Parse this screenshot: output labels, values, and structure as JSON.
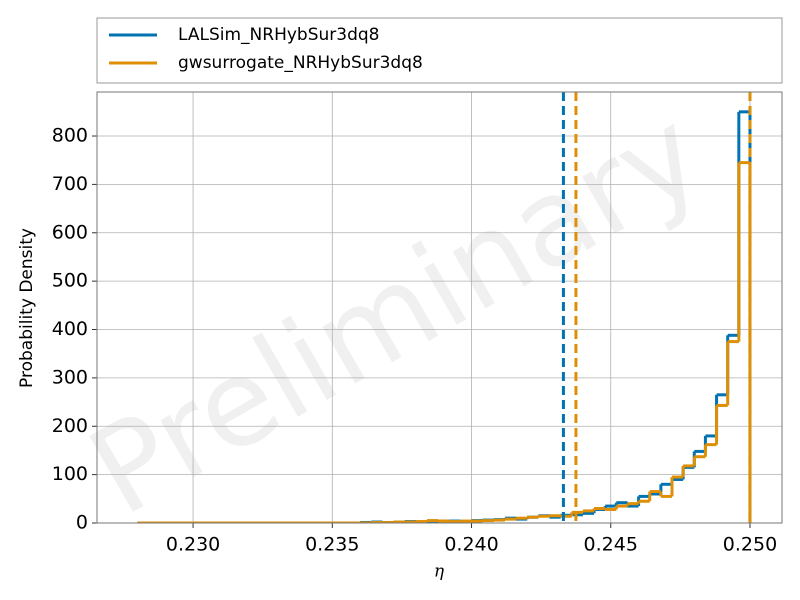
{
  "chart_data": {
    "type": "step-histogram",
    "xlabel": "η",
    "ylabel": "Probability Density",
    "watermark": "Preliminary",
    "bins": [
      0.228,
      0.2284,
      0.2288,
      0.2292,
      0.2296,
      0.23,
      0.2304,
      0.2308,
      0.2312,
      0.2316,
      0.232,
      0.2324,
      0.2328,
      0.2332,
      0.2336,
      0.234,
      0.2344,
      0.2348,
      0.2352,
      0.2356,
      0.236,
      0.2364,
      0.2368,
      0.2372,
      0.2376,
      0.238,
      0.2384,
      0.2388,
      0.2392,
      0.2396,
      0.24,
      0.2404,
      0.2408,
      0.2412,
      0.2416,
      0.242,
      0.2424,
      0.2428,
      0.2432,
      0.2436,
      0.244,
      0.2444,
      0.2448,
      0.2452,
      0.2456,
      0.246,
      0.2464,
      0.2468,
      0.2472,
      0.2476,
      0.248,
      0.2484,
      0.2488,
      0.2492,
      0.2496,
      0.25
    ],
    "series": [
      {
        "name": "LALSim_NRHybSur3dq8",
        "color": "#0173b2",
        "quantiles": [
          0.2433,
          0.25
        ],
        "values": [
          0,
          0,
          0,
          0,
          0,
          0,
          0,
          0,
          0,
          0,
          0,
          0,
          0,
          0,
          0,
          0,
          0,
          0,
          0,
          0,
          1,
          2,
          1,
          2,
          3,
          2,
          3,
          4,
          4,
          3,
          5,
          6,
          7,
          10,
          8,
          12,
          15,
          12,
          16,
          17,
          20,
          28,
          35,
          42,
          35,
          55,
          60,
          80,
          90,
          115,
          148,
          180,
          265,
          388,
          850
        ]
      },
      {
        "name": "gwsurrogate_NRHybSur3dq8",
        "color": "#de8f05",
        "quantiles": [
          0.24375,
          0.25
        ],
        "values": [
          0,
          0,
          0,
          0,
          0,
          0,
          0,
          0,
          0,
          0,
          0,
          0,
          0,
          0,
          0,
          0,
          0,
          0,
          0,
          0,
          0,
          1,
          1,
          2,
          2,
          3,
          5,
          4,
          3,
          4,
          4,
          5,
          6,
          8,
          10,
          12,
          14,
          15,
          14,
          22,
          25,
          30,
          28,
          35,
          40,
          45,
          65,
          55,
          95,
          118,
          137,
          162,
          243,
          375,
          745
        ]
      }
    ],
    "xlim": [
      0.22655,
      0.25115
    ],
    "xticks": [
      {
        "value": 0.23,
        "label": "0.230"
      },
      0.235,
      {
        "value": 0.24,
        "label": "0.240"
      },
      0.245,
      {
        "value": 0.25,
        "label": "0.250"
      }
    ],
    "ylim": [
      0,
      891
    ],
    "yticks": [
      0,
      100,
      200,
      300,
      400,
      500,
      600,
      700,
      800
    ],
    "grid": true,
    "legend": "top"
  }
}
